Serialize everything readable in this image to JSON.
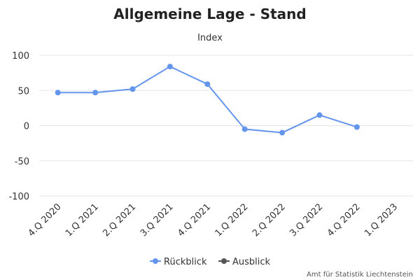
{
  "chart_data": {
    "type": "line",
    "title": "Allgemeine Lage - Stand",
    "subtitle": "Index",
    "categories": [
      "4.Q 2020",
      "1.Q 2021",
      "2.Q 2021",
      "3.Q 2021",
      "4.Q 2021",
      "1.Q 2022",
      "2.Q 2022",
      "3.Q 2022",
      "4.Q 2022",
      "1.Q 2023"
    ],
    "series": [
      {
        "name": "Rückblick",
        "values": [
          47,
          47,
          52,
          84,
          59,
          -5,
          -10,
          15,
          -2,
          null
        ],
        "color": "#6495ed"
      },
      {
        "name": "Ausblick",
        "values": [
          null,
          null,
          null,
          null,
          null,
          null,
          null,
          null,
          null,
          null
        ],
        "color": "#555555"
      }
    ],
    "ylim": [
      -100,
      100
    ],
    "yticks": [
      100,
      50,
      0,
      -50,
      -100
    ],
    "grid": true,
    "legend_position": "bottom-center",
    "credit": "Amt für Statistik Liechtenstein"
  }
}
